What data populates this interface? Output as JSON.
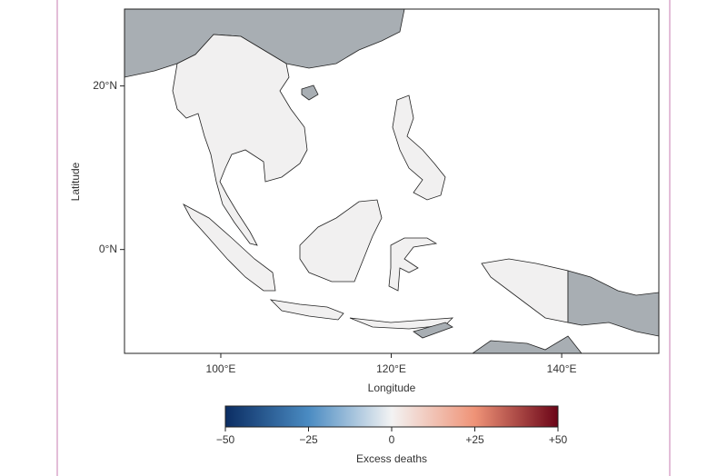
{
  "chart_data": {
    "type": "map",
    "xlabel": "Longitude",
    "ylabel": "Latitude",
    "xlim": [
      88.7,
      151.4
    ],
    "ylim": [
      -12.7,
      29.4
    ],
    "xticks": [
      {
        "value": 100,
        "label": "100°E"
      },
      {
        "value": 120,
        "label": "120°E"
      },
      {
        "value": 140,
        "label": "140°E"
      }
    ],
    "yticks": [
      {
        "value": 0,
        "label": "0°N"
      },
      {
        "value": 20,
        "label": "20°N"
      }
    ],
    "colorbar": {
      "label": "Excess deaths",
      "lim": [
        -50,
        50
      ],
      "ticks": [
        {
          "value": -50,
          "label": "−50"
        },
        {
          "value": -25,
          "label": "−25"
        },
        0,
        {
          "value": 25,
          "label": "+25"
        },
        {
          "value": 50,
          "label": "+50"
        }
      ],
      "colors": [
        "#0b2d63",
        "#4a8bc2",
        "#f3f3f3",
        "#ef9377",
        "#6b0417"
      ]
    }
  }
}
